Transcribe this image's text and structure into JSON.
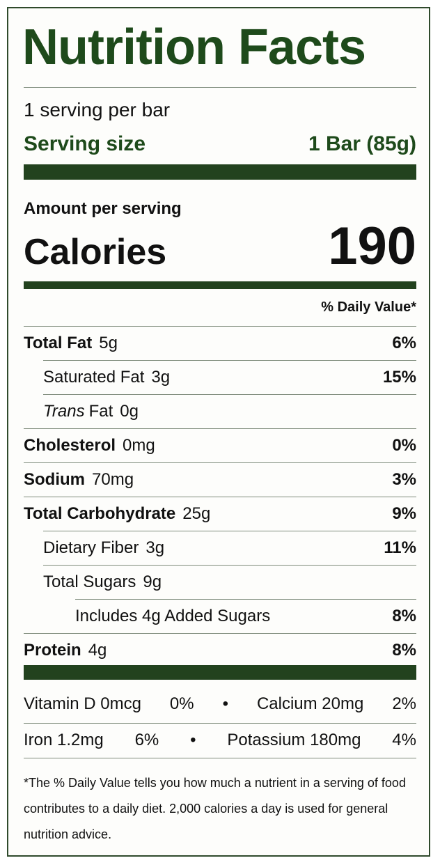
{
  "title": "Nutrition Facts",
  "servings": "1 serving per bar",
  "serving_size": {
    "label": "Serving size",
    "value": "1 Bar (85g)"
  },
  "amount_per_serving": "Amount per serving",
  "calories": {
    "label": "Calories",
    "value": "190"
  },
  "daily_value_header": "% Daily Value*",
  "nutrients": [
    {
      "name": "Total Fat",
      "amount": "5g",
      "dv": "6%",
      "bold": true,
      "indent": 0
    },
    {
      "name": "Saturated Fat",
      "amount": "3g",
      "dv": "15%",
      "bold": false,
      "indent": 1
    },
    {
      "name_italic": "Trans",
      "name": "Fat",
      "amount": "0g",
      "bold": false,
      "indent": 1
    },
    {
      "name": "Cholesterol",
      "amount": "0mg",
      "dv": "0%",
      "bold": true,
      "indent": 0
    },
    {
      "name": "Sodium",
      "amount": "70mg",
      "dv": "3%",
      "bold": true,
      "indent": 0
    },
    {
      "name": "Total Carbohydrate",
      "amount": "25g",
      "dv": "9%",
      "bold": true,
      "indent": 0
    },
    {
      "name": "Dietary Fiber",
      "amount": "3g",
      "dv": "11%",
      "bold": false,
      "indent": 1
    },
    {
      "name": "Total Sugars",
      "amount": "9g",
      "bold": false,
      "indent": 1
    },
    {
      "name": "Includes 4g Added Sugars",
      "dv": "8%",
      "bold": false,
      "indent": 2
    },
    {
      "name": "Protein",
      "amount": "4g",
      "dv": "8%",
      "bold": true,
      "indent": 0
    }
  ],
  "vitamin_rows": [
    [
      {
        "name": "Vitamin D 0mcg",
        "dv": "0%"
      },
      {
        "name": "Calcium 20mg",
        "dv": "2%"
      }
    ],
    [
      {
        "name": "Iron 1.2mg",
        "dv": "6%"
      },
      {
        "name": "Potassium 180mg",
        "dv": "4%"
      }
    ]
  ],
  "footnote": "*The % Daily Value tells you how much a nutrient in a serving of food contributes to a daily diet. 2,000 calories a day is used for general nutrition advice."
}
